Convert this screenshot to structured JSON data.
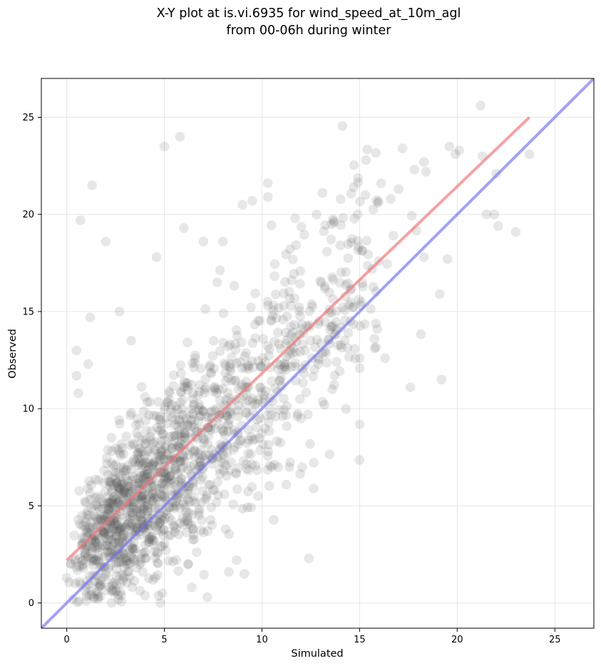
{
  "chart_data": {
    "type": "scatter",
    "title": [
      "X-Y plot at is.vi.6935 for wind_speed_at_10m_agl",
      "from 00-06h during winter"
    ],
    "xlabel": "Simulated",
    "ylabel": "Observed",
    "xlim": [
      -1.3,
      27
    ],
    "ylim": [
      -1.3,
      27
    ],
    "xticks": [
      0,
      5,
      10,
      15,
      20,
      25
    ],
    "yticks": [
      0,
      5,
      10,
      15,
      20,
      25
    ],
    "xtick_labels": [
      "0",
      "5",
      "10",
      "15",
      "20",
      "25"
    ],
    "ytick_labels": [
      "0",
      "5",
      "10",
      "15",
      "20",
      "25"
    ],
    "grid": true,
    "point_color": "#555555",
    "point_opacity": 0.14,
    "fit_line": {
      "color": "#f07070",
      "x": [
        0,
        23.7
      ],
      "y": [
        2.2,
        25.0
      ]
    },
    "identity_line": {
      "color": "#7070f0",
      "x": [
        -1.3,
        27
      ],
      "y": [
        -1.3,
        27
      ]
    },
    "outliers": [
      [
        21.2,
        25.6
      ],
      [
        5.8,
        24.0
      ],
      [
        5.0,
        23.5
      ],
      [
        19.6,
        23.5
      ],
      [
        17.2,
        23.4
      ],
      [
        20.1,
        23.3
      ],
      [
        19.9,
        23.1
      ],
      [
        21.3,
        23.0
      ],
      [
        23.7,
        23.1
      ],
      [
        18.3,
        22.7
      ],
      [
        17.8,
        22.3
      ],
      [
        22.0,
        22.1
      ],
      [
        18.4,
        22.2
      ],
      [
        1.3,
        21.5
      ],
      [
        16.1,
        21.6
      ],
      [
        17.0,
        21.3
      ],
      [
        21.5,
        20.0
      ],
      [
        21.9,
        20.0
      ],
      [
        22.1,
        19.4
      ],
      [
        23.0,
        19.1
      ],
      [
        0.7,
        19.7
      ],
      [
        2.0,
        18.6
      ],
      [
        19.5,
        17.7
      ],
      [
        18.3,
        17.8
      ],
      [
        19.1,
        15.9
      ],
      [
        17.6,
        11.1
      ],
      [
        19.2,
        11.5
      ],
      [
        12.4,
        2.3
      ],
      [
        7.2,
        0.3
      ],
      [
        4.8,
        0.0
      ],
      [
        2.3,
        0.0
      ],
      [
        0.5,
        11.7
      ],
      [
        0.6,
        10.8
      ],
      [
        0.5,
        13.0
      ],
      [
        1.1,
        12.3
      ],
      [
        1.2,
        14.7
      ],
      [
        2.7,
        15.0
      ],
      [
        3.3,
        13.5
      ],
      [
        9.0,
        20.5
      ],
      [
        9.5,
        20.7
      ],
      [
        10.3,
        20.9
      ],
      [
        13.1,
        21.1
      ],
      [
        14.7,
        21.4
      ],
      [
        15.3,
        21.0
      ],
      [
        16.6,
        20.8
      ],
      [
        9.1,
        1.5
      ],
      [
        8.3,
        1.6
      ],
      [
        9.8,
        5.5
      ],
      [
        10.5,
        7.0
      ],
      [
        11.4,
        7.0
      ],
      [
        12.0,
        9.5
      ],
      [
        13.2,
        10.2
      ],
      [
        8.7,
        2.2
      ],
      [
        6.4,
        0.8
      ],
      [
        3.9,
        1.6
      ],
      [
        1.0,
        0.1
      ],
      [
        0.0,
        1.3
      ],
      [
        15.0,
        12.6
      ],
      [
        16.3,
        12.6
      ],
      [
        14.9,
        20.0
      ],
      [
        12.8,
        20.0
      ],
      [
        11.7,
        19.8
      ],
      [
        8.0,
        18.6
      ],
      [
        7.0,
        18.6
      ],
      [
        6.0,
        19.3
      ],
      [
        4.6,
        17.8
      ]
    ]
  }
}
